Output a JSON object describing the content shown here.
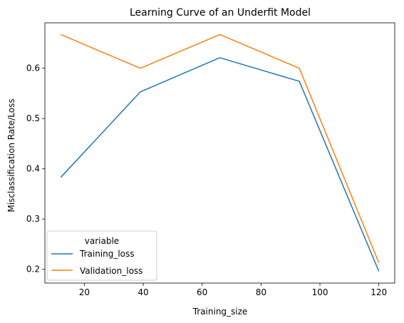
{
  "chart_data": {
    "type": "line",
    "title": "Learning Curve of an Underfit Model",
    "xlabel": "Training_size",
    "ylabel": "Misclassification Rate/Loss",
    "x": [
      12,
      39,
      66,
      93,
      120
    ],
    "series": [
      {
        "name": "Training_loss",
        "color": "#1f77b4",
        "values": [
          0.383,
          0.553,
          0.621,
          0.574,
          0.196
        ]
      },
      {
        "name": "Validation_loss",
        "color": "#ff7f0e",
        "values": [
          0.667,
          0.6,
          0.667,
          0.6,
          0.213
        ]
      }
    ],
    "xlim": [
      6.6,
      125.4
    ],
    "ylim": [
      0.1726,
      0.6904
    ],
    "xticks": [
      20,
      40,
      60,
      80,
      100,
      120
    ],
    "yticks": [
      0.2,
      0.3,
      0.4,
      0.5,
      0.6
    ],
    "grid": false,
    "legend": {
      "title": "variable",
      "placement": "lower-left"
    }
  }
}
